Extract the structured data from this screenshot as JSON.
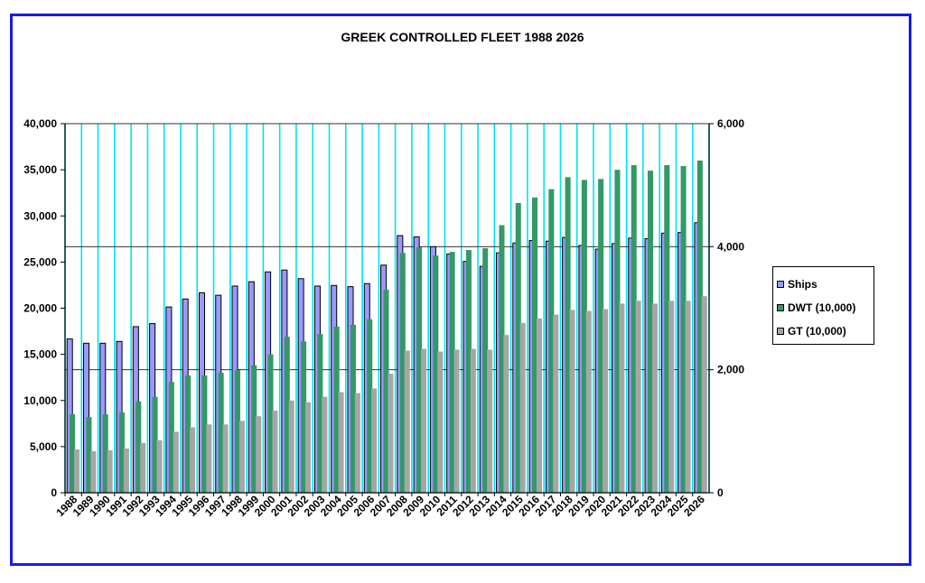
{
  "chart_data": {
    "type": "bar",
    "title": "GREEK CONTROLLED FLEET 1988 2026",
    "categories": [
      "1988",
      "1989",
      "1990",
      "1991",
      "1992",
      "1993",
      "1994",
      "1995",
      "1996",
      "1997",
      "1998",
      "1999",
      "2000",
      "2001",
      "2002",
      "2003",
      "2004",
      "2005",
      "2006",
      "2007",
      "2008",
      "2009",
      "2010",
      "2011",
      "2012",
      "2013",
      "2014",
      "2015",
      "2016",
      "2017",
      "2018",
      "2019",
      "2020",
      "2021",
      "2022",
      "2023",
      "2024",
      "2025",
      "2026"
    ],
    "series": [
      {
        "name": "Ships",
        "axis": "right",
        "color": "#9999ff",
        "values": [
          2500,
          2430,
          2430,
          2460,
          2700,
          2750,
          3020,
          3150,
          3250,
          3210,
          3360,
          3430,
          3590,
          3620,
          3480,
          3360,
          3370,
          3350,
          3400,
          3700,
          4180,
          4160,
          4000,
          3880,
          3760,
          3680,
          3900,
          4060,
          4100,
          4090,
          4150,
          4020,
          3960,
          4050,
          4140,
          4130,
          4220,
          4230,
          4390
        ]
      },
      {
        "name": "DWT (10,000)",
        "axis": "left",
        "color": "#339966",
        "values": [
          8500,
          8200,
          8500,
          8700,
          9900,
          10400,
          12000,
          12700,
          12700,
          13000,
          13300,
          13800,
          15000,
          16900,
          16400,
          17200,
          18000,
          18200,
          18800,
          22000,
          26000,
          26600,
          25700,
          26100,
          26300,
          26500,
          29000,
          31400,
          32000,
          32900,
          34200,
          33900,
          34000,
          35000,
          35500,
          34900,
          35500,
          35400,
          36000
        ]
      },
      {
        "name": "GT (10,000)",
        "axis": "left",
        "color": "#a6a6a6",
        "values": [
          4700,
          4500,
          4600,
          4800,
          5400,
          5700,
          6600,
          7100,
          7400,
          7400,
          7800,
          8300,
          8900,
          10000,
          9800,
          10400,
          10900,
          10800,
          11300,
          12900,
          15400,
          15600,
          15300,
          15500,
          15600,
          15500,
          17100,
          18400,
          18900,
          19300,
          19800,
          19700,
          19900,
          20500,
          20800,
          20500,
          20800,
          20800,
          21300
        ]
      }
    ],
    "y_left": {
      "min": 0,
      "max": 40000,
      "ticks": [
        "0",
        "5,000",
        "10,000",
        "15,000",
        "20,000",
        "25,000",
        "30,000",
        "35,000",
        "40,000"
      ]
    },
    "y_right": {
      "min": 0,
      "max": 6000,
      "ticks": [
        "0",
        "2,000",
        "4,000",
        "6,000"
      ]
    },
    "legend_position": "right",
    "colors": {
      "plot_background": "#ffffff",
      "gridline": "#00e5ee",
      "frame": "#1a1ae6"
    }
  },
  "legend": {
    "items": [
      {
        "label": "Ships",
        "color": "#9999ff"
      },
      {
        "label": "DWT (10,000)",
        "color": "#339966"
      },
      {
        "label": "GT (10,000)",
        "color": "#a6a6a6"
      }
    ]
  }
}
